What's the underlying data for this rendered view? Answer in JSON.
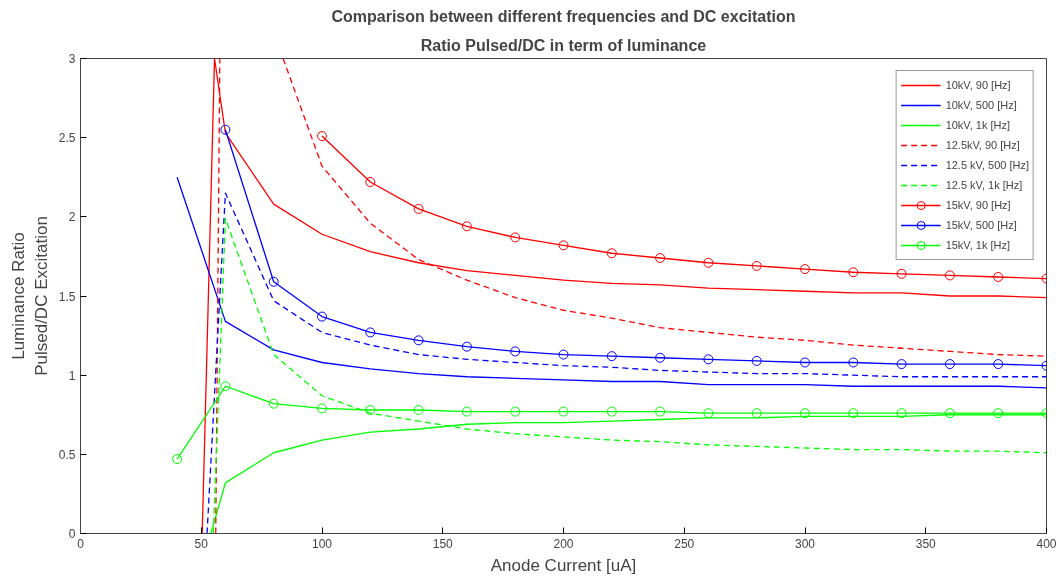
{
  "chart_data": {
    "type": "line",
    "title": "Comparison between different frequencies and DC excitation",
    "subtitle": "Ratio Pulsed/DC in term of luminance",
    "xlabel": "Anode Current [uA]",
    "ylabel": "Luminance Ratio\nPulsed/DC Excitation",
    "xlim": [
      0,
      400
    ],
    "ylim": [
      0,
      3
    ],
    "xticks": [
      0,
      50,
      100,
      150,
      200,
      250,
      300,
      350,
      400
    ],
    "yticks": [
      0,
      0.5,
      1,
      1.5,
      2,
      2.5,
      3
    ],
    "legend": "top right",
    "grid": false,
    "series": [
      {
        "name": "10kV, 90 [Hz]",
        "color": "#ff0000",
        "line_style": "solid",
        "marker": "none",
        "x": [
          50.4,
          55.5,
          60,
          80,
          100,
          120,
          140,
          160,
          180,
          200,
          220,
          240,
          260,
          280,
          300,
          320,
          340,
          360,
          380,
          400
        ],
        "values": [
          0,
          3,
          2.53,
          2.08,
          1.89,
          1.78,
          1.71,
          1.66,
          1.63,
          1.6,
          1.58,
          1.57,
          1.55,
          1.54,
          1.53,
          1.52,
          1.52,
          1.5,
          1.5,
          1.49
        ]
      },
      {
        "name": "10kV, 500 [Hz]",
        "color": "#0000ff",
        "line_style": "solid",
        "marker": "none",
        "x": [
          40,
          60,
          80,
          100,
          120,
          140,
          160,
          180,
          200,
          220,
          240,
          260,
          280,
          300,
          320,
          340,
          360,
          380,
          400
        ],
        "values": [
          2.25,
          1.34,
          1.16,
          1.08,
          1.04,
          1.01,
          0.99,
          0.98,
          0.97,
          0.96,
          0.96,
          0.94,
          0.94,
          0.94,
          0.93,
          0.93,
          0.93,
          0.93,
          0.92
        ]
      },
      {
        "name": "10kV, 1k [Hz]",
        "color": "#00ff00",
        "line_style": "solid",
        "marker": "none",
        "x": [
          54,
          60,
          80,
          100,
          120,
          140,
          160,
          180,
          200,
          220,
          240,
          260,
          280,
          300,
          320,
          340,
          360,
          380,
          400
        ],
        "values": [
          0,
          0.32,
          0.51,
          0.59,
          0.64,
          0.66,
          0.69,
          0.7,
          0.7,
          0.71,
          0.72,
          0.73,
          0.73,
          0.74,
          0.74,
          0.74,
          0.75,
          0.75,
          0.75
        ]
      },
      {
        "name": "12.5kV, 90 [Hz]",
        "color": "#ff0000",
        "line_style": "dashed",
        "marker": "none",
        "x": [
          56,
          57.7,
          70,
          83.9,
          100,
          120,
          140,
          160,
          180,
          200,
          220,
          240,
          260,
          280,
          300,
          320,
          340,
          360,
          380,
          400
        ],
        "values": [
          0,
          3,
          null,
          3,
          2.32,
          1.96,
          1.73,
          1.6,
          1.49,
          1.41,
          1.36,
          1.3,
          1.27,
          1.24,
          1.22,
          1.19,
          1.17,
          1.15,
          1.13,
          1.12
        ]
      },
      {
        "name": "12.5 kV, 500 [Hz]",
        "color": "#0000ff",
        "line_style": "dashed",
        "marker": "none",
        "x": [
          52.4,
          60,
          80,
          100,
          120,
          140,
          160,
          180,
          200,
          220,
          240,
          260,
          280,
          300,
          320,
          340,
          360,
          380,
          400
        ],
        "values": [
          0,
          2.15,
          1.47,
          1.27,
          1.19,
          1.13,
          1.1,
          1.08,
          1.06,
          1.05,
          1.03,
          1.02,
          1.01,
          1.01,
          1.0,
          0.99,
          0.99,
          0.99,
          0.99
        ]
      },
      {
        "name": "12.5 kV, 1k [Hz]",
        "color": "#00ff00",
        "line_style": "dashed",
        "marker": "none",
        "x": [
          55,
          60,
          80,
          100,
          120,
          140,
          160,
          180,
          200,
          220,
          240,
          260,
          280,
          300,
          320,
          340,
          360,
          380,
          400
        ],
        "values": [
          0,
          1.99,
          1.13,
          0.87,
          0.76,
          0.71,
          0.66,
          0.63,
          0.61,
          0.59,
          0.58,
          0.56,
          0.55,
          0.54,
          0.53,
          0.53,
          0.52,
          0.52,
          0.51
        ]
      },
      {
        "name": "15kV, 90 [Hz]",
        "color": "#ff0000",
        "line_style": "solid",
        "marker": "circle",
        "x": [
          100,
          120,
          140,
          160,
          180,
          200,
          220,
          240,
          260,
          280,
          300,
          320,
          340,
          360,
          380,
          400
        ],
        "values": [
          2.51,
          2.22,
          2.05,
          1.94,
          1.87,
          1.82,
          1.77,
          1.74,
          1.71,
          1.69,
          1.67,
          1.65,
          1.64,
          1.63,
          1.62,
          1.61
        ]
      },
      {
        "name": "15kV, 500 [Hz]",
        "color": "#0000ff",
        "line_style": "solid",
        "marker": "circle",
        "x": [
          60,
          80,
          100,
          120,
          140,
          160,
          180,
          200,
          220,
          240,
          260,
          280,
          300,
          320,
          340,
          360,
          380,
          400
        ],
        "values": [
          2.55,
          1.59,
          1.37,
          1.27,
          1.22,
          1.18,
          1.15,
          1.13,
          1.12,
          1.11,
          1.1,
          1.09,
          1.08,
          1.08,
          1.07,
          1.07,
          1.07,
          1.06
        ]
      },
      {
        "name": "15kV, 1k [Hz]",
        "color": "#00ff00",
        "line_style": "solid",
        "marker": "circle",
        "x": [
          40,
          60,
          80,
          100,
          120,
          140,
          160,
          180,
          200,
          220,
          240,
          260,
          280,
          300,
          320,
          340,
          360,
          380,
          400
        ],
        "values": [
          0.47,
          0.93,
          0.82,
          0.79,
          0.78,
          0.78,
          0.77,
          0.77,
          0.77,
          0.77,
          0.77,
          0.76,
          0.76,
          0.76,
          0.76,
          0.76,
          0.76,
          0.76,
          0.76
        ]
      }
    ]
  }
}
